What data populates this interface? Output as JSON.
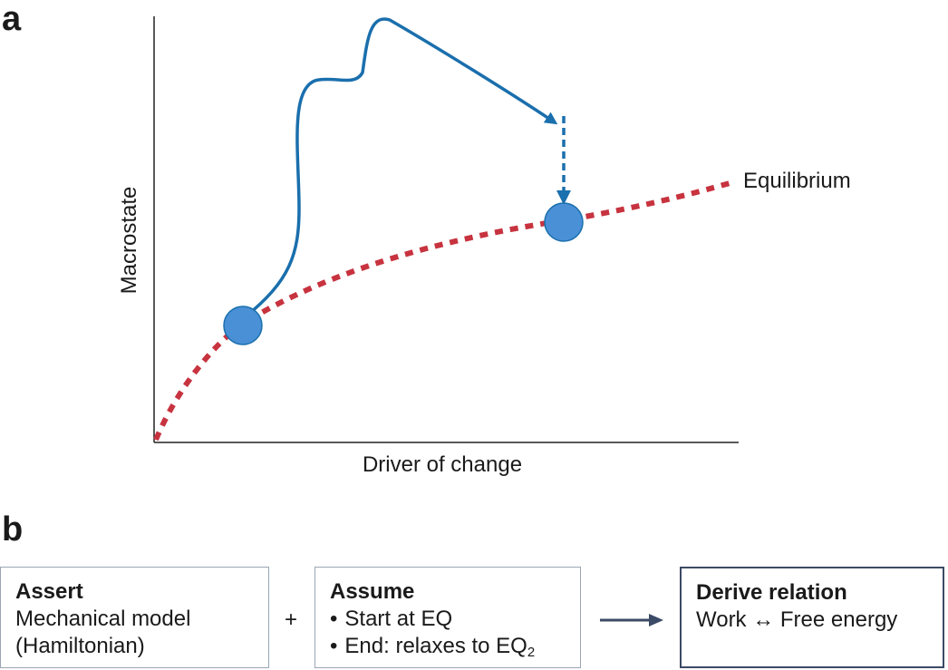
{
  "panel_a": {
    "letter": "a",
    "y_axis_label": "Macrostate",
    "x_axis_label": "Driver of change",
    "equilibrium_label": "Equilibrium"
  },
  "panel_b": {
    "letter": "b",
    "assert_box": {
      "title": "Assert",
      "lines": [
        "Mechanical model",
        "(Hamiltonian)"
      ]
    },
    "plus": "+",
    "assume_box": {
      "title": "Assume",
      "bullets": [
        "Start at EQ",
        "End: relaxes to EQ"
      ],
      "subscript": "2"
    },
    "derive_box": {
      "title": "Derive relation",
      "line": "Work ↔ Free energy"
    }
  },
  "colors": {
    "equilibrium_curve": "#c7333f",
    "path_line": "#1a6fad",
    "state_marker": "#4a90d6",
    "arrow_b": "#3b4a66",
    "box_border": "#9aa6b3"
  }
}
